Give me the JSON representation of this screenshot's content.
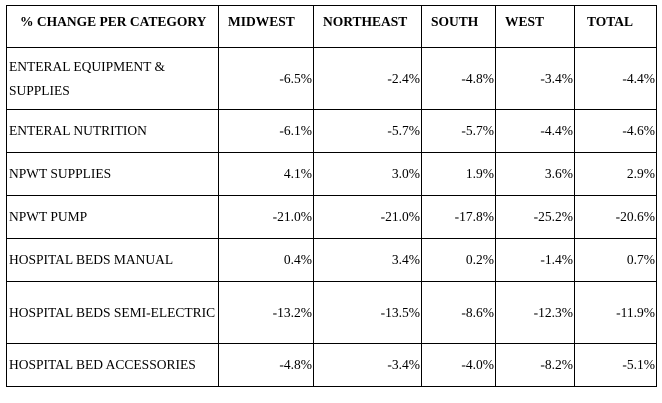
{
  "table": {
    "headers": [
      "% CHANGE PER CATEGORY",
      "MIDWEST",
      "NORTHEAST",
      "SOUTH",
      "WEST",
      "TOTAL"
    ],
    "rows": [
      {
        "category": "ENTERAL EQUIPMENT & SUPPLIES",
        "midwest": "-6.5%",
        "northeast": "-2.4%",
        "south": "-4.8%",
        "west": "-3.4%",
        "total": "-4.4%"
      },
      {
        "category": "ENTERAL NUTRITION",
        "midwest": "-6.1%",
        "northeast": "-5.7%",
        "south": "-5.7%",
        "west": "-4.4%",
        "total": "-4.6%"
      },
      {
        "category": "NPWT SUPPLIES",
        "midwest": "4.1%",
        "northeast": "3.0%",
        "south": "1.9%",
        "west": "3.6%",
        "total": "2.9%"
      },
      {
        "category": "NPWT PUMP",
        "midwest": "-21.0%",
        "northeast": "-21.0%",
        "south": "-17.8%",
        "west": "-25.2%",
        "total": "-20.6%"
      },
      {
        "category": "HOSPITAL BEDS MANUAL",
        "midwest": "0.4%",
        "northeast": "3.4%",
        "south": "0.2%",
        "west": "-1.4%",
        "total": "0.7%"
      },
      {
        "category": "HOSPITAL BEDS SEMI-ELECTRIC",
        "midwest": "-13.2%",
        "northeast": "-13.5%",
        "south": "-8.6%",
        "west": "-12.3%",
        "total": "-11.9%"
      },
      {
        "category": "HOSPITAL BED ACCESSORIES",
        "midwest": "-4.8%",
        "northeast": "-3.4%",
        "south": "-4.0%",
        "west": "-8.2%",
        "total": "-5.1%"
      }
    ]
  }
}
